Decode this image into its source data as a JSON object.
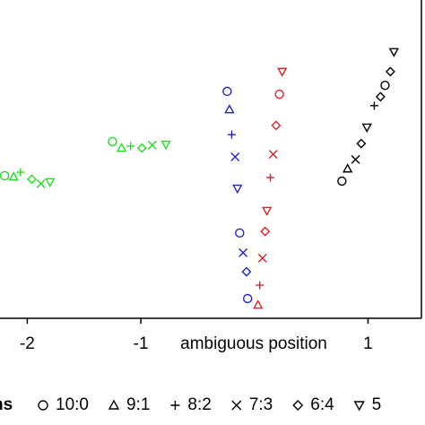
{
  "chart_data": {
    "type": "scatter",
    "xlabel": "ambiguous position",
    "xlim": [
      -2.24,
      1.47
    ],
    "ylim": [
      0,
      10
    ],
    "xticks": [
      -2,
      -1,
      1
    ],
    "legend_title": "ns",
    "legend": [
      {
        "marker": "circle",
        "label": "10:0"
      },
      {
        "marker": "triangle",
        "label": "9:1"
      },
      {
        "marker": "plus",
        "label": "8:2"
      },
      {
        "marker": "x",
        "label": "7:3"
      },
      {
        "marker": "diamond",
        "label": "6:4"
      },
      {
        "marker": "triangle-down",
        "label": "5"
      }
    ],
    "series": [
      {
        "color": "#22dd22",
        "x": [
          -2.2,
          -2.12,
          -2.06,
          -1.96,
          -1.88,
          -1.8
        ],
        "values": [
          4.48,
          4.45,
          4.59,
          4.37,
          4.23,
          4.28
        ],
        "markers": [
          0,
          1,
          2,
          4,
          3,
          5
        ]
      },
      {
        "color": "#22dd22",
        "x": [
          -1.25,
          -1.17,
          -1.09,
          -0.99,
          -0.9,
          -0.78
        ],
        "values": [
          5.55,
          5.35,
          5.41,
          5.35,
          5.44,
          5.46
        ],
        "markers": [
          0,
          1,
          2,
          4,
          3,
          5
        ]
      },
      {
        "color": "#2222cc",
        "x": [
          -0.24,
          -0.22,
          -0.2,
          -0.17,
          -0.15,
          -0.13,
          -0.1,
          -0.07,
          -0.06
        ],
        "values": [
          7.13,
          6.56,
          5.77,
          5.07,
          4.08,
          2.68,
          2.06,
          1.46,
          0.62
        ],
        "markers": [
          0,
          1,
          2,
          3,
          5,
          0,
          3,
          4,
          0
        ]
      },
      {
        "color": "#dd2222",
        "x": [
          0.244,
          0.22,
          0.19,
          0.165,
          0.14,
          0.11,
          0.094,
          0.071,
          0.047,
          0.031
        ],
        "values": [
          7.75,
          7.04,
          6.06,
          5.15,
          4.42,
          3.38,
          2.73,
          1.89,
          1.04,
          0.42
        ],
        "markers": [
          5,
          0,
          4,
          3,
          2,
          5,
          4,
          3,
          2,
          1
        ]
      },
      {
        "color": "#000000",
        "x": [
          1.228,
          1.197,
          1.15,
          1.11,
          1.055,
          0.99,
          0.94,
          0.89,
          0.82,
          0.77
        ],
        "values": [
          8.37,
          7.75,
          7.32,
          6.96,
          6.68,
          6.0,
          5.49,
          4.99,
          4.7,
          4.31
        ],
        "markers": [
          5,
          4,
          0,
          4,
          2,
          5,
          4,
          3,
          1,
          0
        ]
      }
    ]
  }
}
